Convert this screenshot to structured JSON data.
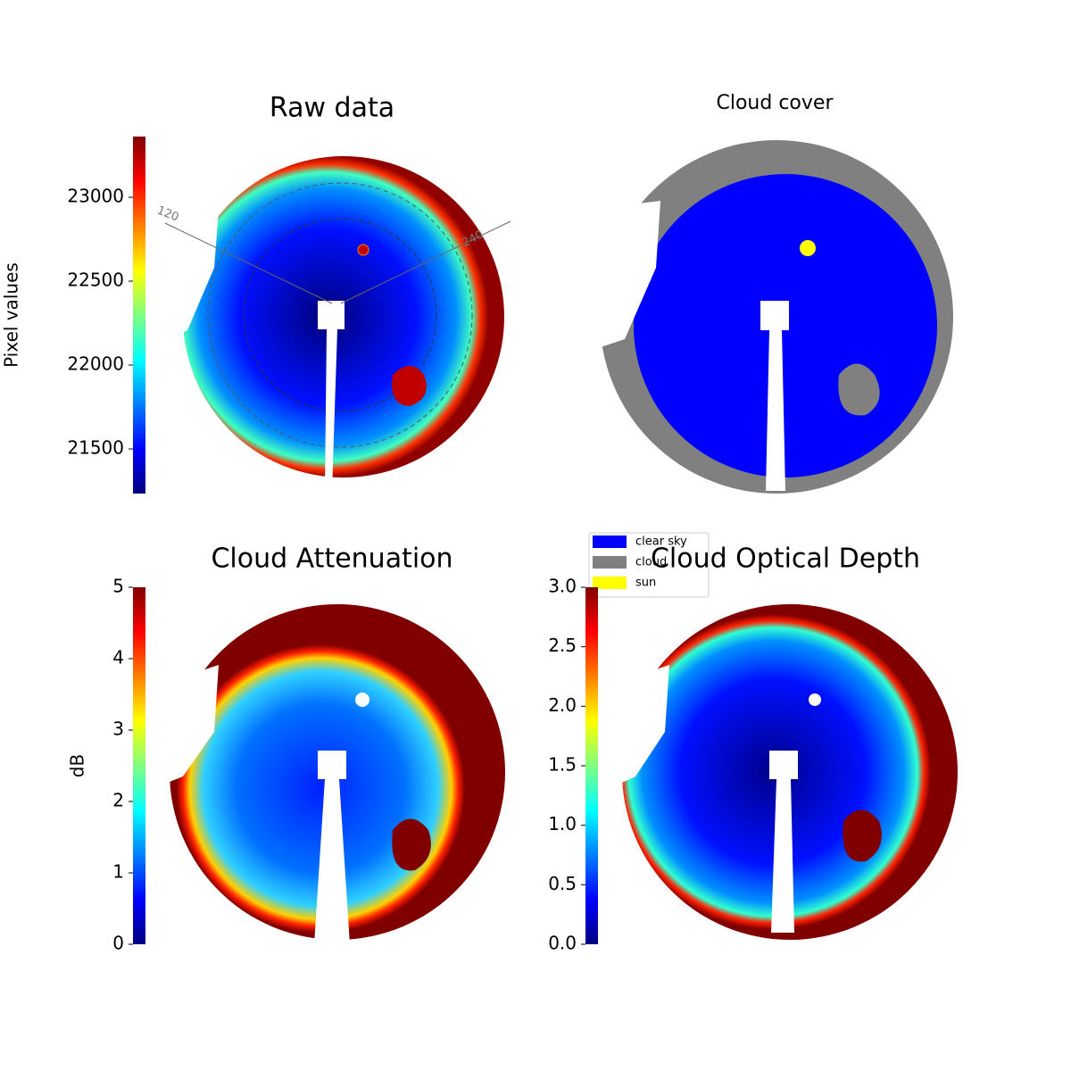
{
  "chart_data": [
    {
      "type": "image",
      "title": "Raw data",
      "colorbar": {
        "label": "Pixel values",
        "clim": [
          21234,
          23362
        ],
        "cticks": [
          21500,
          22000,
          22500,
          23000
        ]
      },
      "annotations": [
        "120",
        "240"
      ]
    },
    {
      "type": "image",
      "title": "Cloud cover",
      "legend": {
        "series": [
          {
            "name": "clear sky",
            "color": "#0000ff"
          },
          {
            "name": "cloud",
            "color": "#808080"
          },
          {
            "name": "sun",
            "color": "#ffff00"
          }
        ]
      }
    },
    {
      "type": "image",
      "title": "Cloud Attenuation",
      "colorbar": {
        "label": "dB",
        "clim": [
          0,
          5
        ],
        "cticks": [
          0,
          1,
          2,
          3,
          4,
          5
        ]
      }
    },
    {
      "type": "image",
      "title": "Cloud Optical Depth",
      "colorbar": {
        "clim": [
          0,
          3
        ],
        "cticks": [
          {
            "value": 0,
            "label": "0.0"
          },
          {
            "value": 0.5,
            "label": "0.5"
          },
          {
            "value": 1,
            "label": "1.0"
          },
          {
            "value": 1.5,
            "label": "1.5"
          },
          {
            "value": 2,
            "label": "2.0"
          },
          {
            "value": 2.5,
            "label": "2.5"
          },
          {
            "value": 3,
            "label": "3.0"
          }
        ]
      }
    }
  ]
}
